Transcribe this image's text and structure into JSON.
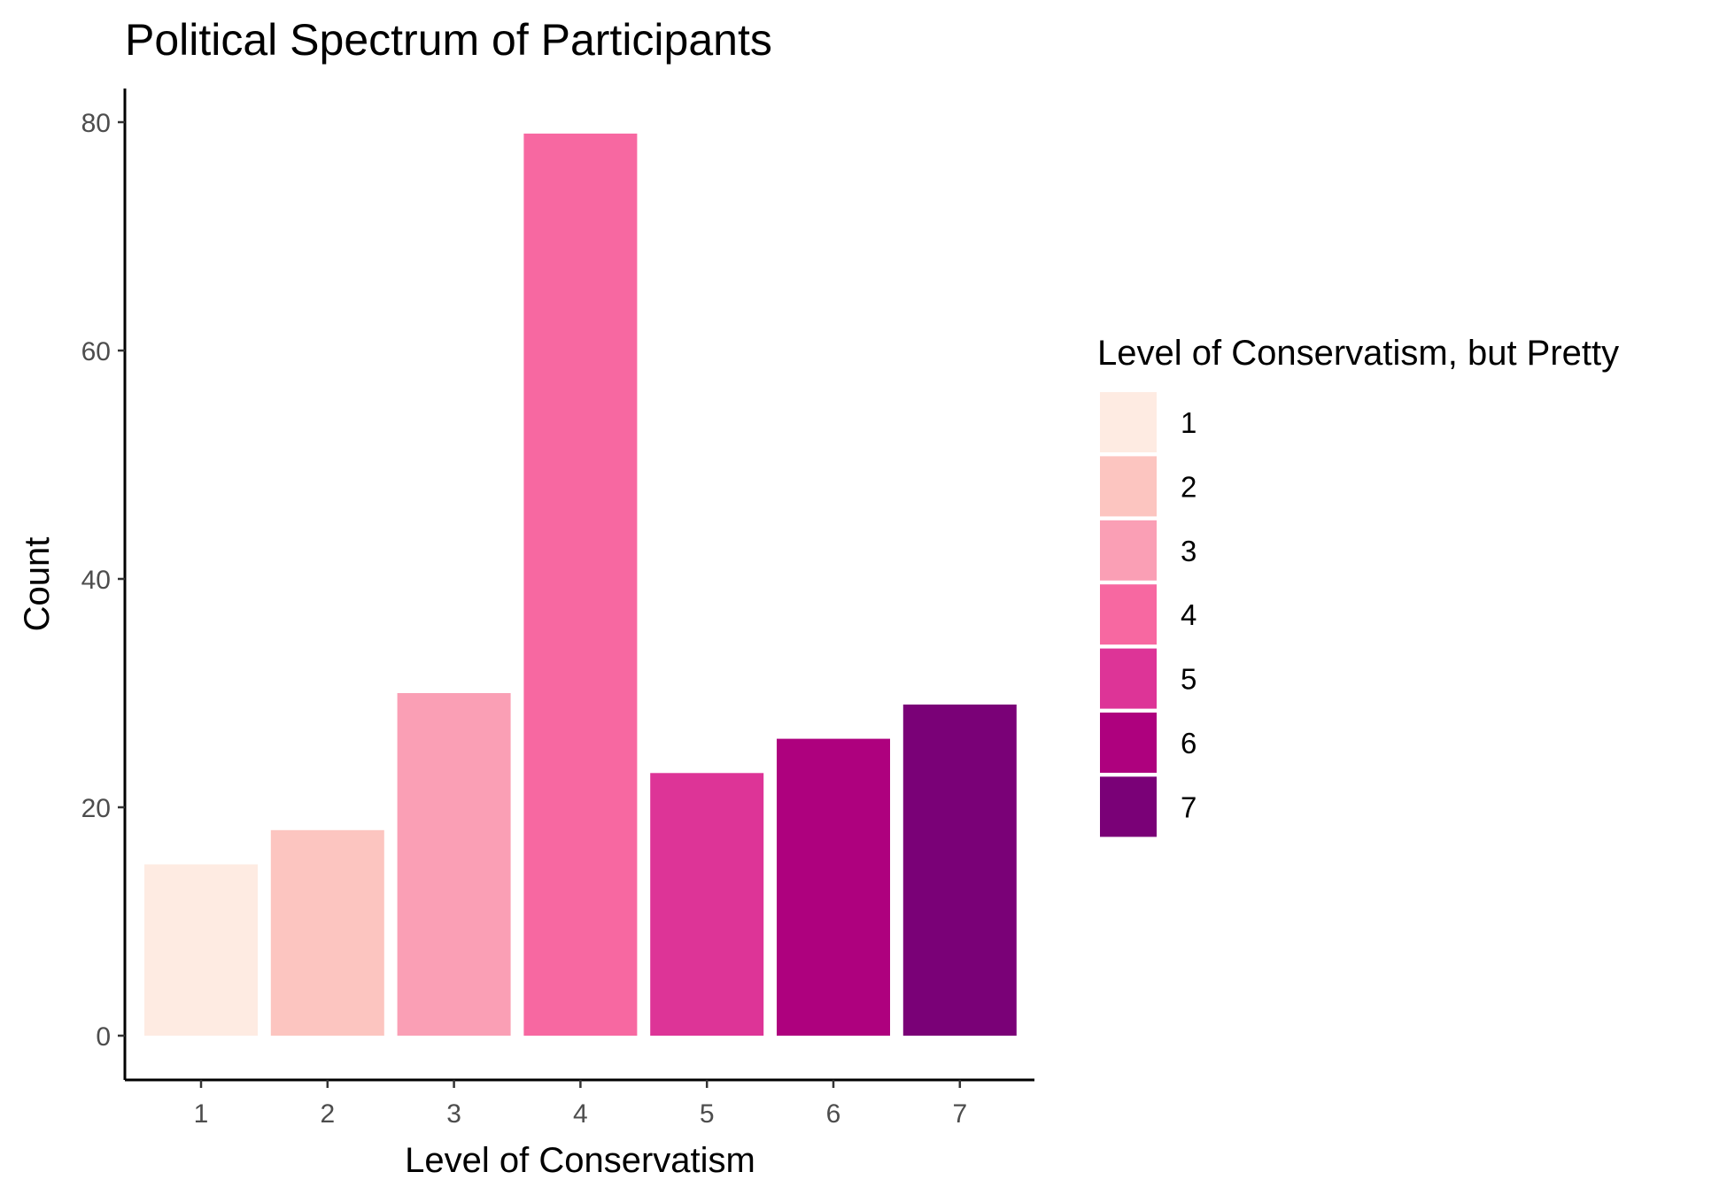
{
  "chart_data": {
    "type": "bar",
    "title": "Political Spectrum of Participants",
    "xlabel": "Level of Conservatism",
    "ylabel": "Count",
    "categories": [
      "1",
      "2",
      "3",
      "4",
      "5",
      "6",
      "7"
    ],
    "values": [
      15,
      18,
      30,
      79,
      23,
      26,
      29
    ],
    "colors": [
      "#FEEBE2",
      "#FCC5C0",
      "#FA9FB5",
      "#F768A1",
      "#DD3497",
      "#AE017E",
      "#7A0177"
    ],
    "ylim": [
      0,
      80
    ],
    "yticks": [
      "0",
      "20",
      "40",
      "60",
      "80"
    ],
    "grid": false,
    "legend": {
      "title": "Level of Conservatism, but Pretty",
      "placement": "right",
      "entries": [
        "1",
        "2",
        "3",
        "4",
        "5",
        "6",
        "7"
      ]
    }
  }
}
